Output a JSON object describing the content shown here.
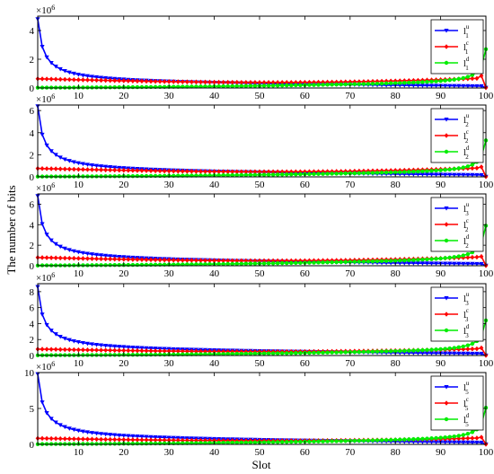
{
  "chart_data": {
    "type": "line",
    "xlabel": "Slot",
    "ylabel": "The number of bits",
    "xlim": [
      1,
      100
    ],
    "xticks": [
      10,
      20,
      30,
      40,
      50,
      60,
      70,
      80,
      90,
      100
    ],
    "colors": {
      "u": "#0000ff",
      "c": "#ff0000",
      "d": "#00ee00"
    },
    "markers": {
      "u": "triangle-down",
      "c": "diamond",
      "d": "circle"
    },
    "panels": [
      {
        "scale_label": "×10",
        "scale_exp": "6",
        "ylim": [
          0,
          5000000
        ],
        "yticks": [
          0,
          2,
          4
        ],
        "legend": [
          {
            "base": "l",
            "sub": "1",
            "sup": "u"
          },
          {
            "base": "l",
            "sub": "1",
            "sup": "c"
          },
          {
            "base": "l",
            "sub": "1",
            "sup": "d"
          }
        ],
        "series": [
          {
            "key": "u",
            "start": 4800000,
            "end": 20000,
            "shape": "decay"
          },
          {
            "key": "c",
            "start": 800000,
            "end": 20000,
            "peak": 850000,
            "shape": "flat"
          },
          {
            "key": "d",
            "start": 20000,
            "end": 2700000,
            "shape": "rise"
          }
        ]
      },
      {
        "scale_label": "×10",
        "scale_exp": "6",
        "ylim": [
          0,
          6500000
        ],
        "yticks": [
          0,
          2,
          4,
          6
        ],
        "legend": [
          {
            "base": "l",
            "sub": "2",
            "sup": "u"
          },
          {
            "base": "l",
            "sub": "2",
            "sup": "c"
          },
          {
            "base": "l",
            "sub": "2",
            "sup": "d"
          }
        ],
        "series": [
          {
            "key": "u",
            "start": 6400000,
            "end": 20000,
            "shape": "decay"
          },
          {
            "key": "c",
            "start": 950000,
            "end": 20000,
            "peak": 900000,
            "shape": "flat"
          },
          {
            "key": "d",
            "start": 20000,
            "end": 3300000,
            "shape": "rise"
          }
        ]
      },
      {
        "scale_label": "×10",
        "scale_exp": "6",
        "ylim": [
          0,
          7000000
        ],
        "yticks": [
          0,
          2,
          4,
          6
        ],
        "legend": [
          {
            "base": "l",
            "sub": "3",
            "sup": "u"
          },
          {
            "base": "l",
            "sub": "2",
            "sup": "c"
          },
          {
            "base": "l",
            "sub": "2",
            "sup": "d"
          }
        ],
        "series": [
          {
            "key": "u",
            "start": 6800000,
            "end": 20000,
            "shape": "decay"
          },
          {
            "key": "c",
            "start": 1000000,
            "end": 20000,
            "peak": 900000,
            "shape": "flat"
          },
          {
            "key": "d",
            "start": 20000,
            "end": 3900000,
            "shape": "rise"
          }
        ]
      },
      {
        "scale_label": "×10",
        "scale_exp": "6",
        "ylim": [
          0,
          9000000
        ],
        "yticks": [
          0,
          2,
          4,
          6,
          8
        ],
        "legend": [
          {
            "base": "l",
            "sub": "3",
            "sup": "u"
          },
          {
            "base": "l",
            "sub": "3",
            "sup": "c"
          },
          {
            "base": "l",
            "sub": "3",
            "sup": "d"
          }
        ],
        "series": [
          {
            "key": "u",
            "start": 8600000,
            "end": 20000,
            "shape": "decay"
          },
          {
            "key": "c",
            "start": 1000000,
            "end": 20000,
            "peak": 950000,
            "shape": "flat"
          },
          {
            "key": "d",
            "start": 20000,
            "end": 4400000,
            "shape": "rise"
          }
        ]
      },
      {
        "scale_label": "×10",
        "scale_exp": "6",
        "ylim": [
          0,
          10000000
        ],
        "yticks": [
          0,
          5,
          10
        ],
        "legend": [
          {
            "base": "l",
            "sub": "5",
            "sup": "u"
          },
          {
            "base": "l",
            "sub": "5",
            "sup": "c"
          },
          {
            "base": "l",
            "sub": "5",
            "sup": "d"
          }
        ],
        "series": [
          {
            "key": "u",
            "start": 9800000,
            "end": 20000,
            "shape": "decay"
          },
          {
            "key": "c",
            "start": 1050000,
            "end": 20000,
            "peak": 1000000,
            "shape": "flat"
          },
          {
            "key": "d",
            "start": 20000,
            "end": 5100000,
            "shape": "rise"
          }
        ]
      }
    ]
  }
}
